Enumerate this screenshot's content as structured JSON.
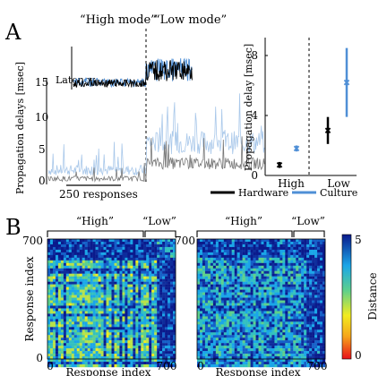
{
  "panel_a": {
    "letter": "A",
    "mode_high": "“High mode”",
    "mode_low": "“Low mode”",
    "inset_label": "Latency",
    "ylabel": "Propagation delays [msec]",
    "yticks": [
      "15",
      "10",
      "5",
      "0"
    ],
    "scalebar_label": "250 responses",
    "right_ylabel": "Propagation delay [msec]",
    "right_yticks": [
      "8",
      "4",
      "0"
    ],
    "right_xticks": [
      "High",
      "Low"
    ],
    "legend": [
      {
        "label": "Hardware",
        "color": "#000000"
      },
      {
        "label": "Culture",
        "color": "#4f8fd6"
      }
    ]
  },
  "panel_b": {
    "letter": "B",
    "left": {
      "bracket_high": "“High”",
      "bracket_low": "“Low”",
      "ylabel": "Response index",
      "xlabel": "Response index",
      "tick_max": "700",
      "tick_min": "0",
      "xtick_min": "0",
      "xtick_max": "700"
    },
    "right": {
      "bracket_high": "“High”",
      "bracket_low": "“Low”",
      "xlabel": "Response index",
      "tick_max": "700",
      "xtick_min": "0",
      "xtick_max": "700"
    },
    "colorbar_label": "Distance",
    "colorbar_ticks": [
      "5",
      "0"
    ]
  },
  "chart_data": [
    {
      "type": "line",
      "panel": "A-left",
      "ylabel": "Propagation delays [msec]",
      "ylim": [
        0,
        16
      ],
      "series": [
        {
          "name": "Hardware",
          "color": "#777777",
          "high_mode_mean": 0.8,
          "low_mode_mean": 3
        },
        {
          "name": "Culture",
          "color": "#a9c8ea",
          "high_mode_mean": 2,
          "low_mode_mean": 6
        }
      ]
    },
    {
      "type": "scatter",
      "panel": "A-right",
      "ylabel": "Propagation delay [msec]",
      "categories": [
        "High",
        "Low"
      ],
      "ylim": [
        0,
        10
      ],
      "series": [
        {
          "name": "Hardware",
          "color": "#000000",
          "values": [
            0.7,
            3.0
          ],
          "errors": [
            0.2,
            0.9
          ]
        },
        {
          "name": "Culture",
          "color": "#4f8fd6",
          "values": [
            1.8,
            6.2
          ],
          "errors": [
            0.2,
            2.3
          ]
        }
      ]
    },
    {
      "type": "heatmap",
      "panel": "B",
      "xlabel": "Response index",
      "ylabel": "Response index",
      "range": [
        0,
        700
      ],
      "boundary_index": 600,
      "colorbar": {
        "label": "Distance",
        "min": 0,
        "max": 5
      }
    }
  ]
}
